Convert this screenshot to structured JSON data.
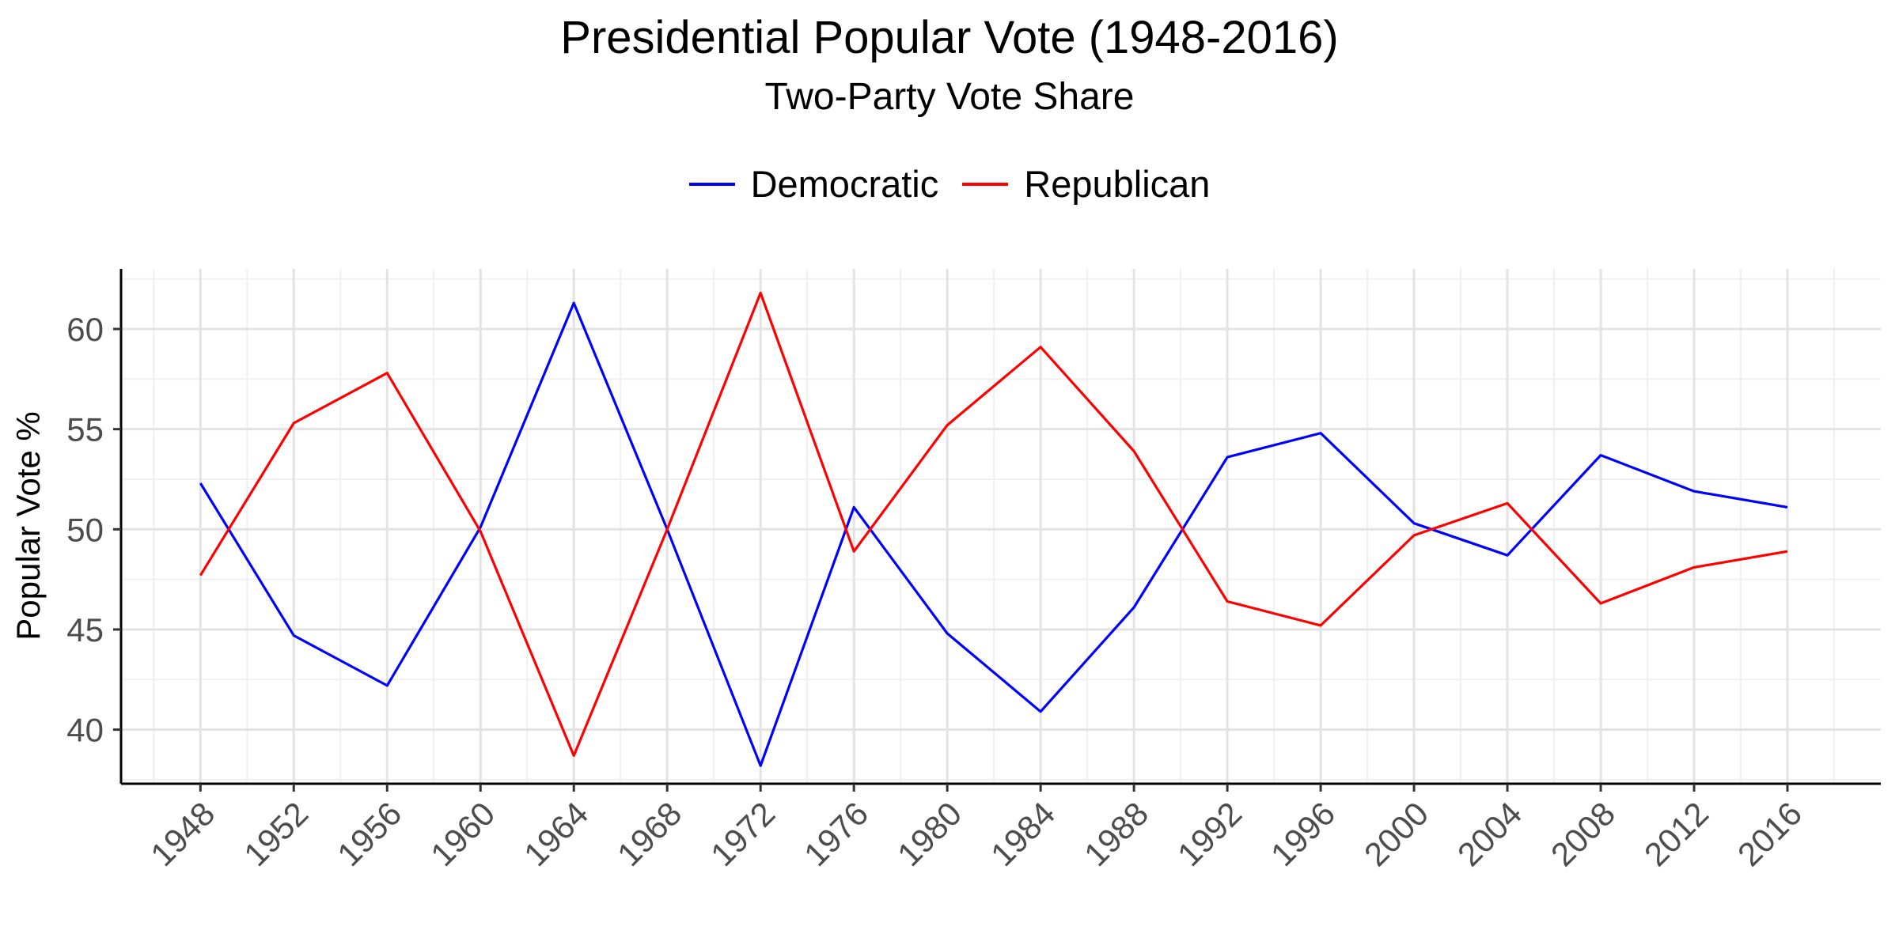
{
  "chart_data": {
    "type": "line",
    "title": "Presidential Popular Vote (1948-2016)",
    "subtitle": "Two-Party Vote Share",
    "xlabel": "",
    "ylabel": "Popular Vote %",
    "x": [
      1948,
      1952,
      1956,
      1960,
      1964,
      1968,
      1972,
      1976,
      1980,
      1984,
      1988,
      1992,
      1996,
      2000,
      2004,
      2008,
      2012,
      2016
    ],
    "xlim": [
      1944.6,
      2020
    ],
    "ylim": [
      37.3,
      63
    ],
    "yticks": [
      40,
      45,
      50,
      55,
      60
    ],
    "grid": true,
    "legend_position": "top",
    "series": [
      {
        "name": "Democratic",
        "color": "#0000ff",
        "values": [
          52.3,
          44.7,
          42.2,
          50.1,
          61.3,
          50.0,
          38.2,
          51.1,
          44.8,
          40.9,
          46.1,
          53.6,
          54.8,
          50.3,
          48.7,
          53.7,
          51.9,
          51.1
        ]
      },
      {
        "name": "Republican",
        "color": "#ff0000",
        "values": [
          47.7,
          55.3,
          57.8,
          49.9,
          38.7,
          50.0,
          61.8,
          48.9,
          55.2,
          59.1,
          53.9,
          46.4,
          45.2,
          49.7,
          51.3,
          46.3,
          48.1,
          48.9
        ]
      }
    ]
  }
}
